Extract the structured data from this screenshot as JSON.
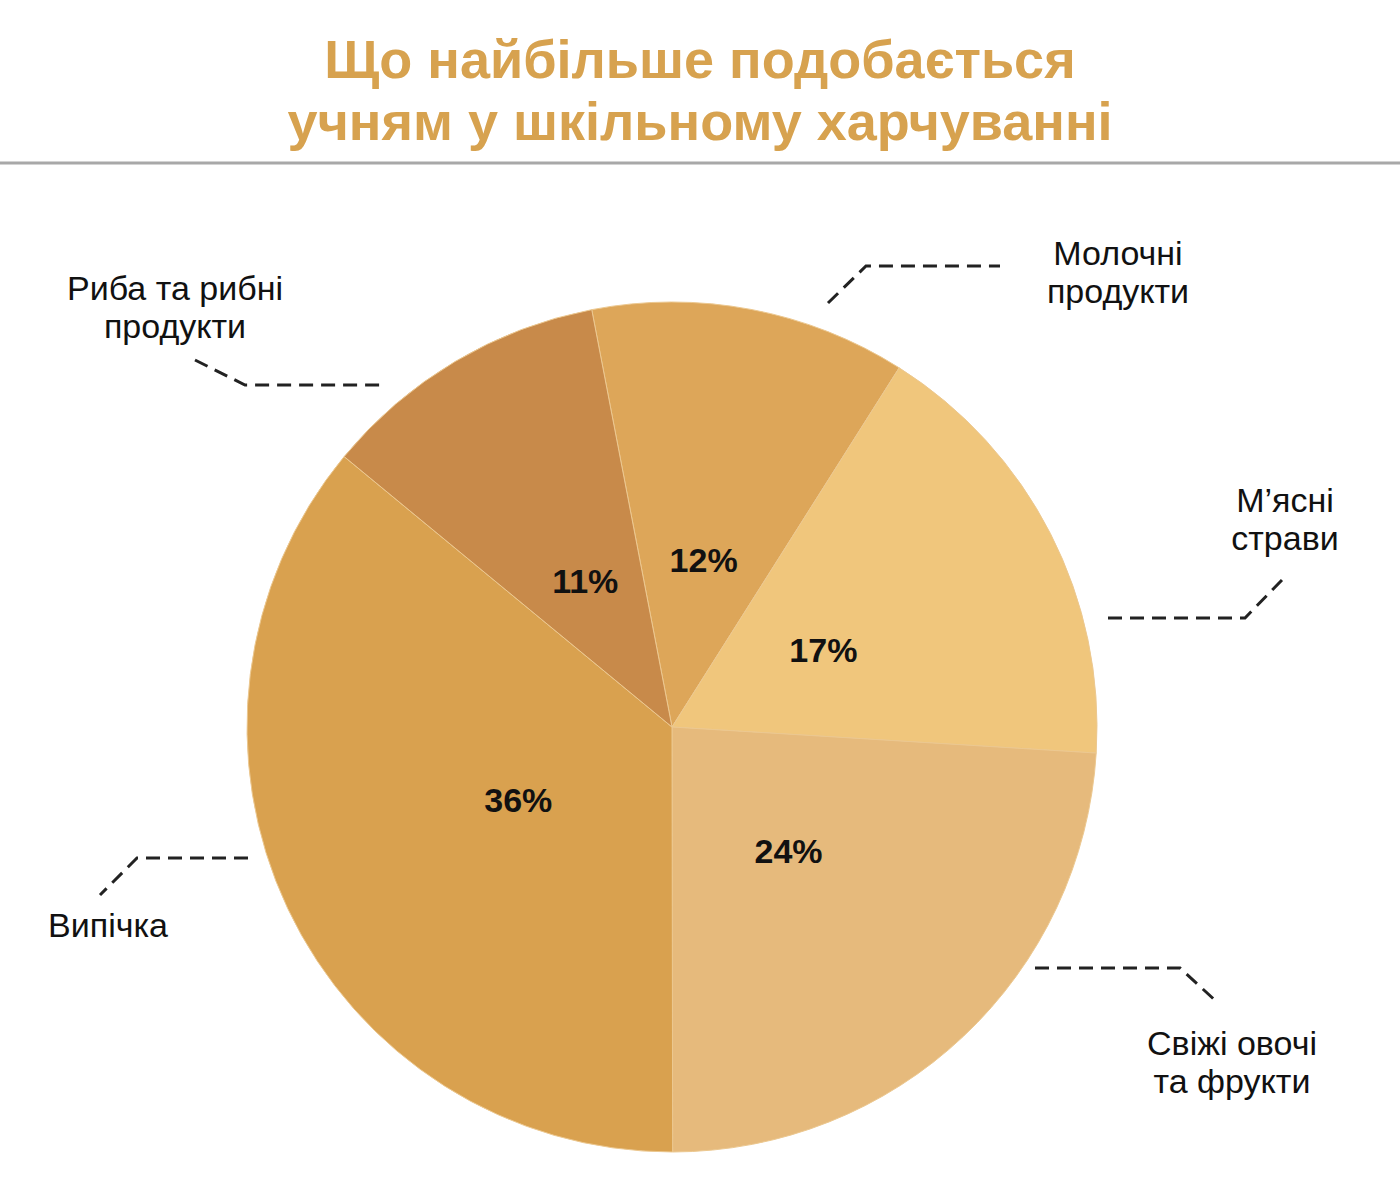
{
  "chart_data": {
    "type": "pie",
    "title": "Що найбільше подобається учням у шкільному харчуванні",
    "categories": [
      "Молочні продукти",
      "М’ясні страви",
      "Свіжі овочі та фрукти",
      "Випічка",
      "Риба та рибні продукти"
    ],
    "values": [
      12,
      17,
      24,
      36,
      11
    ],
    "value_labels": [
      "12%",
      "17%",
      "24%",
      "36%",
      "11%"
    ],
    "colors": [
      "#dda659",
      "#f0c67c",
      "#e6ba7c",
      "#d9a14f",
      "#c88a4a"
    ],
    "data_labels": true
  }
}
